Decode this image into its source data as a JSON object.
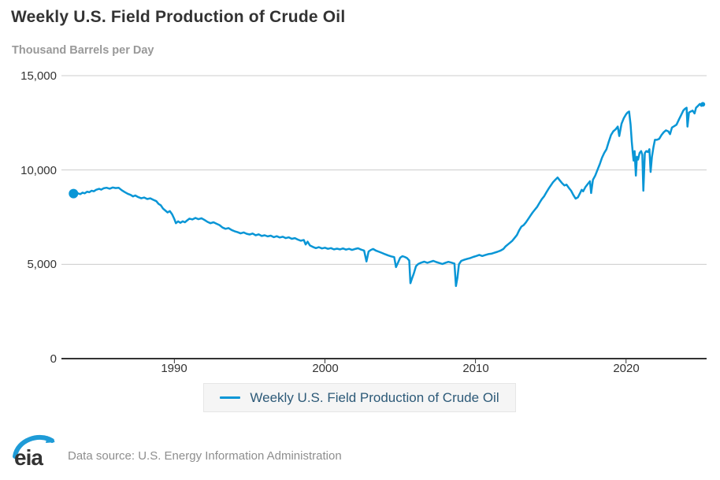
{
  "header": {
    "title": "Weekly U.S. Field Production of Crude Oil",
    "units": "Thousand Barrels per Day"
  },
  "legend": {
    "label": "Weekly U.S. Field Production of Crude Oil"
  },
  "footer": {
    "logo_text": "eia",
    "source": "Data source: U.S. Energy Information Administration"
  },
  "colors": {
    "line": "#0996d6",
    "legend_text": "#2d5a78",
    "grid": "#cccccc",
    "axis": "#333333",
    "subtitle": "#999999"
  },
  "chart_data": {
    "type": "line",
    "title": "Weekly U.S. Field Production of Crude Oil",
    "ylabel": "Thousand Barrels per Day",
    "xlabel": "",
    "grid": true,
    "legend_position": "bottom",
    "xlim": [
      1982.5,
      2025.35
    ],
    "ylim": [
      0,
      15000
    ],
    "x_ticks": [
      1990,
      2000,
      2010,
      2020
    ],
    "x_tick_labels": [
      "1990",
      "2000",
      "2010",
      "2020"
    ],
    "y_ticks": [
      0,
      5000,
      10000,
      15000
    ],
    "y_tick_labels": [
      "0",
      "5,000",
      "10,000",
      "15,000"
    ],
    "series": [
      {
        "name": "Weekly U.S. Field Production of Crude Oil",
        "units": "thousand barrels per day",
        "points": [
          [
            1983.3,
            8750
          ],
          [
            1983.45,
            8680
          ],
          [
            1983.6,
            8760
          ],
          [
            1983.75,
            8720
          ],
          [
            1983.9,
            8800
          ],
          [
            1984.05,
            8760
          ],
          [
            1984.2,
            8850
          ],
          [
            1984.35,
            8820
          ],
          [
            1984.5,
            8900
          ],
          [
            1984.65,
            8870
          ],
          [
            1984.8,
            8950
          ],
          [
            1985.0,
            9000
          ],
          [
            1985.15,
            8960
          ],
          [
            1985.3,
            9030
          ],
          [
            1985.5,
            9060
          ],
          [
            1985.7,
            9010
          ],
          [
            1985.9,
            9070
          ],
          [
            1986.1,
            9040
          ],
          [
            1986.3,
            9060
          ],
          [
            1986.5,
            8930
          ],
          [
            1986.7,
            8830
          ],
          [
            1986.9,
            8740
          ],
          [
            1987.1,
            8680
          ],
          [
            1987.25,
            8600
          ],
          [
            1987.4,
            8650
          ],
          [
            1987.6,
            8560
          ],
          [
            1987.8,
            8500
          ],
          [
            1988.0,
            8540
          ],
          [
            1988.2,
            8460
          ],
          [
            1988.4,
            8500
          ],
          [
            1988.6,
            8420
          ],
          [
            1988.8,
            8350
          ],
          [
            1988.95,
            8200
          ],
          [
            1989.1,
            8130
          ],
          [
            1989.25,
            7950
          ],
          [
            1989.4,
            7850
          ],
          [
            1989.55,
            7750
          ],
          [
            1989.7,
            7820
          ],
          [
            1989.85,
            7650
          ],
          [
            1990.0,
            7400
          ],
          [
            1990.1,
            7180
          ],
          [
            1990.25,
            7280
          ],
          [
            1990.4,
            7200
          ],
          [
            1990.55,
            7280
          ],
          [
            1990.7,
            7230
          ],
          [
            1990.85,
            7330
          ],
          [
            1991.0,
            7420
          ],
          [
            1991.2,
            7380
          ],
          [
            1991.4,
            7460
          ],
          [
            1991.6,
            7390
          ],
          [
            1991.8,
            7440
          ],
          [
            1992.0,
            7350
          ],
          [
            1992.2,
            7250
          ],
          [
            1992.4,
            7180
          ],
          [
            1992.6,
            7230
          ],
          [
            1992.8,
            7150
          ],
          [
            1993.0,
            7080
          ],
          [
            1993.2,
            6950
          ],
          [
            1993.4,
            6880
          ],
          [
            1993.6,
            6920
          ],
          [
            1993.8,
            6820
          ],
          [
            1994.0,
            6750
          ],
          [
            1994.2,
            6700
          ],
          [
            1994.4,
            6640
          ],
          [
            1994.6,
            6690
          ],
          [
            1994.8,
            6620
          ],
          [
            1995.0,
            6580
          ],
          [
            1995.2,
            6630
          ],
          [
            1995.4,
            6540
          ],
          [
            1995.6,
            6590
          ],
          [
            1995.8,
            6500
          ],
          [
            1996.0,
            6540
          ],
          [
            1996.2,
            6480
          ],
          [
            1996.4,
            6520
          ],
          [
            1996.6,
            6440
          ],
          [
            1996.8,
            6490
          ],
          [
            1997.0,
            6420
          ],
          [
            1997.2,
            6460
          ],
          [
            1997.4,
            6390
          ],
          [
            1997.6,
            6430
          ],
          [
            1997.8,
            6350
          ],
          [
            1998.0,
            6390
          ],
          [
            1998.2,
            6310
          ],
          [
            1998.4,
            6250
          ],
          [
            1998.6,
            6290
          ],
          [
            1998.72,
            6050
          ],
          [
            1998.85,
            6200
          ],
          [
            1999.0,
            6000
          ],
          [
            1999.2,
            5920
          ],
          [
            1999.4,
            5860
          ],
          [
            1999.6,
            5910
          ],
          [
            1999.8,
            5840
          ],
          [
            2000.0,
            5880
          ],
          [
            2000.2,
            5820
          ],
          [
            2000.4,
            5860
          ],
          [
            2000.6,
            5790
          ],
          [
            2000.8,
            5830
          ],
          [
            2001.0,
            5790
          ],
          [
            2001.2,
            5840
          ],
          [
            2001.4,
            5780
          ],
          [
            2001.6,
            5820
          ],
          [
            2001.8,
            5760
          ],
          [
            2002.0,
            5810
          ],
          [
            2002.2,
            5850
          ],
          [
            2002.4,
            5780
          ],
          [
            2002.6,
            5730
          ],
          [
            2002.76,
            5150
          ],
          [
            2002.9,
            5680
          ],
          [
            2003.05,
            5760
          ],
          [
            2003.2,
            5810
          ],
          [
            2003.4,
            5720
          ],
          [
            2003.6,
            5660
          ],
          [
            2003.8,
            5600
          ],
          [
            2004.0,
            5530
          ],
          [
            2004.2,
            5470
          ],
          [
            2004.4,
            5420
          ],
          [
            2004.6,
            5380
          ],
          [
            2004.72,
            4850
          ],
          [
            2004.85,
            5080
          ],
          [
            2005.0,
            5350
          ],
          [
            2005.15,
            5430
          ],
          [
            2005.3,
            5390
          ],
          [
            2005.45,
            5330
          ],
          [
            2005.6,
            5200
          ],
          [
            2005.68,
            4000
          ],
          [
            2005.78,
            4250
          ],
          [
            2005.9,
            4500
          ],
          [
            2006.05,
            4900
          ],
          [
            2006.2,
            5020
          ],
          [
            2006.4,
            5090
          ],
          [
            2006.6,
            5140
          ],
          [
            2006.8,
            5080
          ],
          [
            2007.0,
            5130
          ],
          [
            2007.2,
            5180
          ],
          [
            2007.4,
            5120
          ],
          [
            2007.6,
            5070
          ],
          [
            2007.8,
            5020
          ],
          [
            2008.0,
            5080
          ],
          [
            2008.2,
            5130
          ],
          [
            2008.4,
            5090
          ],
          [
            2008.6,
            5040
          ],
          [
            2008.7,
            3850
          ],
          [
            2008.8,
            4300
          ],
          [
            2008.9,
            5000
          ],
          [
            2009.05,
            5180
          ],
          [
            2009.25,
            5240
          ],
          [
            2009.45,
            5290
          ],
          [
            2009.65,
            5330
          ],
          [
            2009.85,
            5390
          ],
          [
            2010.05,
            5440
          ],
          [
            2010.25,
            5500
          ],
          [
            2010.45,
            5440
          ],
          [
            2010.65,
            5490
          ],
          [
            2010.85,
            5540
          ],
          [
            2011.05,
            5560
          ],
          [
            2011.25,
            5610
          ],
          [
            2011.45,
            5660
          ],
          [
            2011.65,
            5720
          ],
          [
            2011.85,
            5810
          ],
          [
            2012.0,
            5950
          ],
          [
            2012.15,
            6050
          ],
          [
            2012.3,
            6150
          ],
          [
            2012.45,
            6250
          ],
          [
            2012.6,
            6400
          ],
          [
            2012.75,
            6550
          ],
          [
            2012.9,
            6800
          ],
          [
            2013.05,
            7000
          ],
          [
            2013.2,
            7080
          ],
          [
            2013.35,
            7220
          ],
          [
            2013.5,
            7400
          ],
          [
            2013.65,
            7580
          ],
          [
            2013.8,
            7750
          ],
          [
            2013.95,
            7900
          ],
          [
            2014.1,
            8050
          ],
          [
            2014.25,
            8250
          ],
          [
            2014.4,
            8450
          ],
          [
            2014.55,
            8600
          ],
          [
            2014.7,
            8800
          ],
          [
            2014.85,
            9000
          ],
          [
            2015.0,
            9180
          ],
          [
            2015.15,
            9350
          ],
          [
            2015.3,
            9480
          ],
          [
            2015.45,
            9600
          ],
          [
            2015.6,
            9450
          ],
          [
            2015.75,
            9300
          ],
          [
            2015.9,
            9180
          ],
          [
            2016.05,
            9220
          ],
          [
            2016.2,
            9050
          ],
          [
            2016.35,
            8900
          ],
          [
            2016.5,
            8680
          ],
          [
            2016.65,
            8480
          ],
          [
            2016.8,
            8550
          ],
          [
            2016.95,
            8780
          ],
          [
            2017.05,
            8950
          ],
          [
            2017.15,
            8870
          ],
          [
            2017.3,
            9090
          ],
          [
            2017.45,
            9250
          ],
          [
            2017.6,
            9400
          ],
          [
            2017.68,
            8780
          ],
          [
            2017.8,
            9480
          ],
          [
            2017.95,
            9700
          ],
          [
            2018.1,
            10000
          ],
          [
            2018.25,
            10300
          ],
          [
            2018.4,
            10650
          ],
          [
            2018.55,
            10900
          ],
          [
            2018.7,
            11100
          ],
          [
            2018.85,
            11500
          ],
          [
            2019.0,
            11850
          ],
          [
            2019.15,
            12050
          ],
          [
            2019.3,
            12150
          ],
          [
            2019.45,
            12300
          ],
          [
            2019.55,
            11800
          ],
          [
            2019.7,
            12450
          ],
          [
            2019.85,
            12750
          ],
          [
            2020.0,
            12950
          ],
          [
            2020.1,
            13050
          ],
          [
            2020.2,
            13100
          ],
          [
            2020.3,
            12400
          ],
          [
            2020.38,
            11500
          ],
          [
            2020.45,
            10900
          ],
          [
            2020.5,
            10500
          ],
          [
            2020.57,
            11000
          ],
          [
            2020.65,
            9700
          ],
          [
            2020.72,
            10700
          ],
          [
            2020.8,
            10550
          ],
          [
            2020.9,
            10900
          ],
          [
            2021.0,
            11000
          ],
          [
            2021.08,
            10800
          ],
          [
            2021.15,
            8900
          ],
          [
            2021.25,
            10900
          ],
          [
            2021.35,
            11000
          ],
          [
            2021.45,
            10950
          ],
          [
            2021.55,
            11100
          ],
          [
            2021.63,
            9900
          ],
          [
            2021.72,
            10700
          ],
          [
            2021.82,
            11200
          ],
          [
            2021.92,
            11600
          ],
          [
            2022.05,
            11600
          ],
          [
            2022.2,
            11650
          ],
          [
            2022.35,
            11850
          ],
          [
            2022.5,
            12000
          ],
          [
            2022.65,
            12100
          ],
          [
            2022.8,
            12050
          ],
          [
            2022.92,
            11900
          ],
          [
            2023.05,
            12250
          ],
          [
            2023.2,
            12320
          ],
          [
            2023.35,
            12400
          ],
          [
            2023.5,
            12650
          ],
          [
            2023.65,
            12900
          ],
          [
            2023.8,
            13150
          ],
          [
            2023.92,
            13250
          ],
          [
            2024.02,
            13300
          ],
          [
            2024.08,
            12300
          ],
          [
            2024.18,
            13050
          ],
          [
            2024.3,
            13100
          ],
          [
            2024.42,
            13150
          ],
          [
            2024.55,
            13000
          ],
          [
            2024.65,
            13300
          ],
          [
            2024.78,
            13400
          ],
          [
            2024.9,
            13500
          ],
          [
            2025.0,
            13400
          ],
          [
            2025.1,
            13480
          ]
        ]
      }
    ]
  }
}
